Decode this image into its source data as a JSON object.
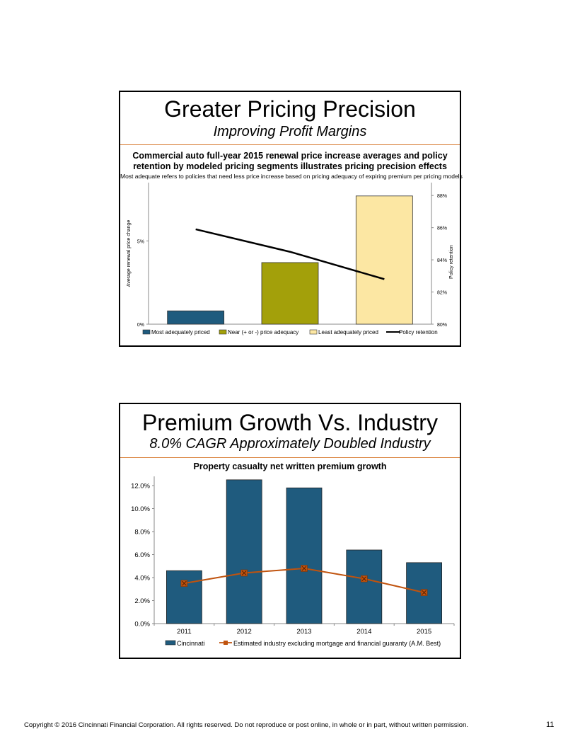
{
  "slide1": {
    "title": "Greater Pricing Precision",
    "subtitle": "Improving Profit Margins",
    "chart_title_line1": "Commercial auto full-year 2015 renewal price increase averages and policy",
    "chart_title_line2": "retention by modeled pricing segments illustrates pricing precision effects",
    "chart_note": "Most adequate refers to policies that need less price increase based on pricing adequacy of expiring premium per pricing models"
  },
  "slide2": {
    "title": "Premium Growth Vs. Industry",
    "subtitle": "8.0% CAGR Approximately Doubled Industry",
    "chart_title": "Property casualty net written premium growth"
  },
  "footer": {
    "copyright": "Copyright © 2016 Cincinnati Financial Corporation. All rights reserved. Do not reproduce or post online, in whole or in part, without written permission.",
    "page_number": "11"
  },
  "chart_data": [
    {
      "type": "bar",
      "title": "Commercial auto full-year 2015 renewal price increase averages and policy retention by modeled pricing segments illustrates pricing precision effects",
      "categories": [
        "Most adequately priced",
        "Near (+ or -) price adequacy",
        "Least adequately priced"
      ],
      "series": [
        {
          "name": "Most adequately priced",
          "values": [
            0.8,
            null,
            null
          ],
          "color": "#1f5b7e"
        },
        {
          "name": "Near (+ or -) price adequacy",
          "values": [
            null,
            3.7,
            null
          ],
          "color": "#a3a00a"
        },
        {
          "name": "Least adequately priced",
          "values": [
            null,
            null,
            7.7
          ],
          "color": "#fce7a3"
        }
      ],
      "line_series": {
        "name": "Policy retention",
        "values": [
          85.9,
          84.5,
          82.8
        ],
        "color": "#000000"
      },
      "ylabel": "Average renewal price change",
      "y2label": "Policy retention",
      "ylim": [
        0,
        8.5
      ],
      "y_ticks": [
        "0%",
        "5%"
      ],
      "y_tick_values": [
        0,
        5
      ],
      "y2lim": [
        80,
        88.8
      ],
      "y2_ticks": [
        "80%",
        "82%",
        "84%",
        "86%",
        "88%"
      ],
      "y2_tick_values": [
        80,
        82,
        84,
        86,
        88
      ],
      "legend_position": "bottom"
    },
    {
      "type": "bar",
      "title": "Property casualty net written premium growth",
      "categories": [
        "2011",
        "2012",
        "2013",
        "2014",
        "2015"
      ],
      "series": [
        {
          "name": "Cincinnati",
          "values": [
            4.6,
            12.5,
            11.8,
            6.4,
            5.3
          ],
          "color": "#1f5b7e"
        }
      ],
      "line_series": {
        "name": "Estimated industry excluding mortgage and financial guaranty (A.M. Best)",
        "values": [
          3.5,
          4.4,
          4.8,
          3.9,
          2.7
        ],
        "color": "#c0530e"
      },
      "xlabel": "",
      "ylabel": "",
      "ylim": [
        0,
        12.8
      ],
      "y_ticks": [
        "0.0%",
        "2.0%",
        "4.0%",
        "6.0%",
        "8.0%",
        "10.0%",
        "12.0%"
      ],
      "y_tick_values": [
        0,
        2,
        4,
        6,
        8,
        10,
        12
      ],
      "legend_position": "bottom"
    }
  ]
}
